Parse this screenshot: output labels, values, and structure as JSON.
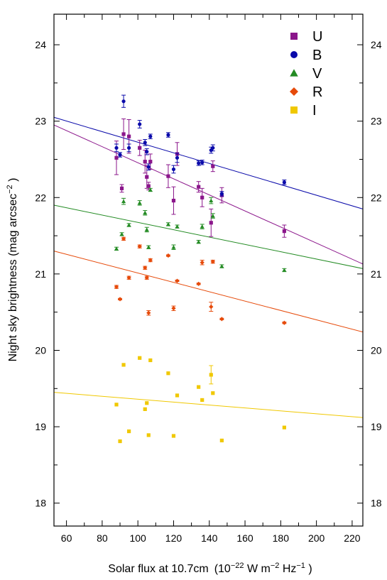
{
  "chart_data": {
    "type": "scatter",
    "xlabel": "Solar flux at 10.7cm",
    "xunit_prefix": "(10",
    "xunit_exp1": "−22",
    "xunit_w": " W m",
    "xunit_exp2": "−2",
    "xunit_hz": " Hz",
    "xunit_exp3": "−1",
    "xunit_close": " )",
    "ylabel": "Night sky brightness (mag  arcsec",
    "ylabel_exp": "−2",
    "ylabel_close": " )",
    "xlim": [
      53,
      226
    ],
    "ylim": [
      17.7,
      24.4
    ],
    "xticks": [
      60,
      80,
      100,
      120,
      140,
      160,
      180,
      200,
      220
    ],
    "yticks": [
      18,
      19,
      20,
      21,
      22,
      23,
      24
    ],
    "series": [
      {
        "name": "U",
        "color": "#8b168b",
        "marker": "square",
        "line": {
          "x": [
            53,
            226
          ],
          "y": [
            22.95,
            21.13
          ]
        },
        "points": [
          {
            "x": 88,
            "y": 22.52,
            "err": 0.22
          },
          {
            "x": 91,
            "y": 22.12,
            "err": 0.05
          },
          {
            "x": 92,
            "y": 22.83,
            "err": 0.2
          },
          {
            "x": 95,
            "y": 22.8,
            "err": 0.22
          },
          {
            "x": 101,
            "y": 22.65,
            "err": 0.1
          },
          {
            "x": 104,
            "y": 22.47,
            "err": 0.15
          },
          {
            "x": 105,
            "y": 22.27,
            "err": 0.15
          },
          {
            "x": 106,
            "y": 22.15,
            "err": 0.05
          },
          {
            "x": 107,
            "y": 22.47,
            "err": 0.1
          },
          {
            "x": 117,
            "y": 22.28,
            "err": 0.15
          },
          {
            "x": 120,
            "y": 21.96,
            "err": 0.18
          },
          {
            "x": 122,
            "y": 22.57,
            "err": 0.15
          },
          {
            "x": 134,
            "y": 22.14,
            "err": 0.07
          },
          {
            "x": 136,
            "y": 22.0,
            "err": 0.12
          },
          {
            "x": 141,
            "y": 21.67,
            "err": 0.18
          },
          {
            "x": 142,
            "y": 22.41,
            "err": 0.07
          },
          {
            "x": 147,
            "y": 22.03,
            "err": 0.1
          },
          {
            "x": 182,
            "y": 21.56,
            "err": 0.08
          }
        ]
      },
      {
        "name": "B",
        "color": "#0a0aaa",
        "marker": "circle",
        "line": {
          "x": [
            53,
            226
          ],
          "y": [
            23.05,
            21.85
          ]
        },
        "points": [
          {
            "x": 88,
            "y": 22.65,
            "err": 0.05
          },
          {
            "x": 90,
            "y": 22.56,
            "err": 0.03
          },
          {
            "x": 92,
            "y": 23.26,
            "err": 0.08
          },
          {
            "x": 95,
            "y": 22.65,
            "err": 0.05
          },
          {
            "x": 101,
            "y": 22.96,
            "err": 0.05
          },
          {
            "x": 104,
            "y": 22.72,
            "err": 0.04
          },
          {
            "x": 105,
            "y": 22.6,
            "err": 0.04
          },
          {
            "x": 106,
            "y": 22.4,
            "err": 0.04
          },
          {
            "x": 107,
            "y": 22.8,
            "err": 0.03
          },
          {
            "x": 117,
            "y": 22.82,
            "err": 0.03
          },
          {
            "x": 120,
            "y": 22.37,
            "err": 0.05
          },
          {
            "x": 122,
            "y": 22.52,
            "err": 0.06
          },
          {
            "x": 134,
            "y": 22.45,
            "err": 0.03
          },
          {
            "x": 136,
            "y": 22.46,
            "err": 0.03
          },
          {
            "x": 141,
            "y": 22.62,
            "err": 0.04
          },
          {
            "x": 142,
            "y": 22.65,
            "err": 0.04
          },
          {
            "x": 147,
            "y": 22.05,
            "err": 0.03
          },
          {
            "x": 182,
            "y": 22.2,
            "err": 0.03
          }
        ]
      },
      {
        "name": "V",
        "color": "#238b23",
        "marker": "triangle",
        "line": {
          "x": [
            53,
            226
          ],
          "y": [
            21.9,
            21.07
          ]
        },
        "points": [
          {
            "x": 88,
            "y": 21.33,
            "err": 0.02
          },
          {
            "x": 91,
            "y": 21.52,
            "err": 0.02
          },
          {
            "x": 92,
            "y": 21.95,
            "err": 0.04
          },
          {
            "x": 95,
            "y": 21.64,
            "err": 0.02
          },
          {
            "x": 101,
            "y": 21.93,
            "err": 0.03
          },
          {
            "x": 104,
            "y": 21.8,
            "err": 0.03
          },
          {
            "x": 105,
            "y": 21.58,
            "err": 0.03
          },
          {
            "x": 106,
            "y": 21.35,
            "err": 0.02
          },
          {
            "x": 107,
            "y": 22.1,
            "err": 0.02
          },
          {
            "x": 117,
            "y": 21.65,
            "err": 0.02
          },
          {
            "x": 120,
            "y": 21.35,
            "err": 0.03
          },
          {
            "x": 122,
            "y": 21.62,
            "err": 0.02
          },
          {
            "x": 134,
            "y": 21.42,
            "err": 0.02
          },
          {
            "x": 136,
            "y": 21.62,
            "err": 0.03
          },
          {
            "x": 141,
            "y": 21.96,
            "err": 0.04
          },
          {
            "x": 142,
            "y": 21.76,
            "err": 0.03
          },
          {
            "x": 147,
            "y": 21.1,
            "err": 0.02
          },
          {
            "x": 182,
            "y": 21.05,
            "err": 0.02
          }
        ]
      },
      {
        "name": "R",
        "color": "#e64a0a",
        "marker": "diamond",
        "line": {
          "x": [
            53,
            226
          ],
          "y": [
            21.3,
            20.24
          ]
        },
        "points": [
          {
            "x": 88,
            "y": 20.83,
            "err": 0.02
          },
          {
            "x": 90,
            "y": 20.67,
            "err": 0.01
          },
          {
            "x": 92,
            "y": 21.46,
            "err": 0.02
          },
          {
            "x": 95,
            "y": 20.95,
            "err": 0.02
          },
          {
            "x": 101,
            "y": 21.36,
            "err": 0.02
          },
          {
            "x": 104,
            "y": 21.08,
            "err": 0.02
          },
          {
            "x": 105,
            "y": 20.95,
            "err": 0.02
          },
          {
            "x": 106,
            "y": 20.49,
            "err": 0.03
          },
          {
            "x": 107,
            "y": 21.18,
            "err": 0.02
          },
          {
            "x": 117,
            "y": 21.24,
            "err": 0.01
          },
          {
            "x": 120,
            "y": 20.55,
            "err": 0.03
          },
          {
            "x": 122,
            "y": 20.91,
            "err": 0.01
          },
          {
            "x": 134,
            "y": 20.87,
            "err": 0.01
          },
          {
            "x": 136,
            "y": 21.15,
            "err": 0.03
          },
          {
            "x": 141,
            "y": 20.57,
            "err": 0.06
          },
          {
            "x": 142,
            "y": 21.16,
            "err": 0.02
          },
          {
            "x": 147,
            "y": 20.41,
            "err": 0.01
          },
          {
            "x": 182,
            "y": 20.36,
            "err": 0.01
          }
        ]
      },
      {
        "name": "I",
        "color": "#f0c800",
        "marker": "square",
        "line": {
          "x": [
            53,
            226
          ],
          "y": [
            19.45,
            19.12
          ]
        },
        "points": [
          {
            "x": 88,
            "y": 19.29,
            "err": 0
          },
          {
            "x": 90,
            "y": 18.81,
            "err": 0
          },
          {
            "x": 92,
            "y": 19.81,
            "err": 0
          },
          {
            "x": 95,
            "y": 18.94,
            "err": 0
          },
          {
            "x": 101,
            "y": 19.9,
            "err": 0
          },
          {
            "x": 104,
            "y": 19.23,
            "err": 0
          },
          {
            "x": 105,
            "y": 19.31,
            "err": 0
          },
          {
            "x": 106,
            "y": 18.89,
            "err": 0
          },
          {
            "x": 107,
            "y": 19.87,
            "err": 0
          },
          {
            "x": 117,
            "y": 19.7,
            "err": 0
          },
          {
            "x": 120,
            "y": 18.88,
            "err": 0
          },
          {
            "x": 122,
            "y": 19.41,
            "err": 0
          },
          {
            "x": 134,
            "y": 19.52,
            "err": 0
          },
          {
            "x": 136,
            "y": 19.35,
            "err": 0
          },
          {
            "x": 141,
            "y": 19.68,
            "err": 0.12
          },
          {
            "x": 142,
            "y": 19.44,
            "err": 0
          },
          {
            "x": 147,
            "y": 18.82,
            "err": 0
          },
          {
            "x": 182,
            "y": 18.99,
            "err": 0
          }
        ]
      }
    ],
    "legend_position": "top-right"
  }
}
